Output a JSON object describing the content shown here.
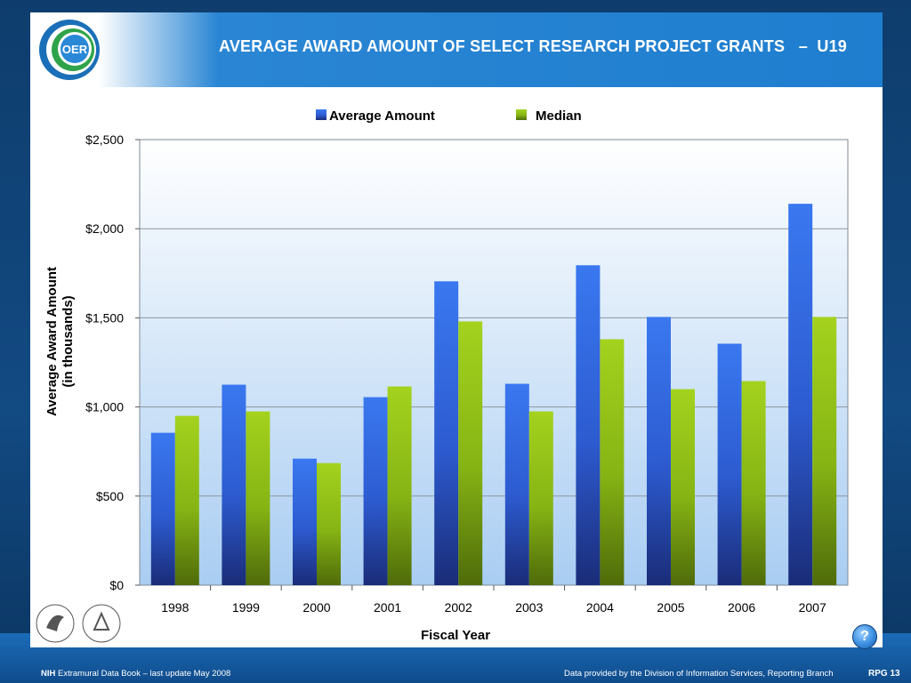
{
  "header": {
    "title": "AVERAGE AWARD AMOUNT OF SELECT RESEARCH PROJECT GRANTS   –  U19",
    "logo_text": "OER"
  },
  "legend": {
    "items": [
      {
        "label": "Average Amount",
        "color": "#2f6fe0"
      },
      {
        "label": "Median",
        "color": "#8cc21a"
      }
    ]
  },
  "chart_data": {
    "type": "bar",
    "xlabel": "Fiscal Year",
    "ylabel": "Average Award Amount",
    "ylabel_2": "(in thousands)",
    "categories": [
      "1998",
      "1999",
      "2000",
      "2001",
      "2002",
      "2003",
      "2004",
      "2005",
      "2006",
      "2007"
    ],
    "series": [
      {
        "name": "Average Amount",
        "values": [
          855,
          1125,
          710,
          1055,
          1705,
          1130,
          1795,
          1505,
          1355,
          2140
        ]
      },
      {
        "name": "Median",
        "values": [
          950,
          975,
          685,
          1115,
          1480,
          975,
          1380,
          1100,
          1145,
          1505
        ]
      }
    ],
    "ylim": [
      0,
      2500
    ],
    "yticks": [
      0,
      500,
      1000,
      1500,
      2000,
      2500
    ],
    "ytick_labels": [
      "$0",
      "$500",
      "$1,000",
      "$1,500",
      "$2,000",
      "$2,500"
    ],
    "grid": true,
    "legend_position": "top"
  },
  "footer": {
    "nih": "NIH",
    "book": " Extramural Data Book – last update May 2008",
    "source": "Data provided by the Division of Information Services, Reporting Branch",
    "page": "RPG 13"
  },
  "help": {
    "label": "?"
  },
  "colors": {
    "header_blue": "#1f7ecf",
    "avg_bar": "#2f6fe0",
    "median_bar": "#8cc21a"
  }
}
